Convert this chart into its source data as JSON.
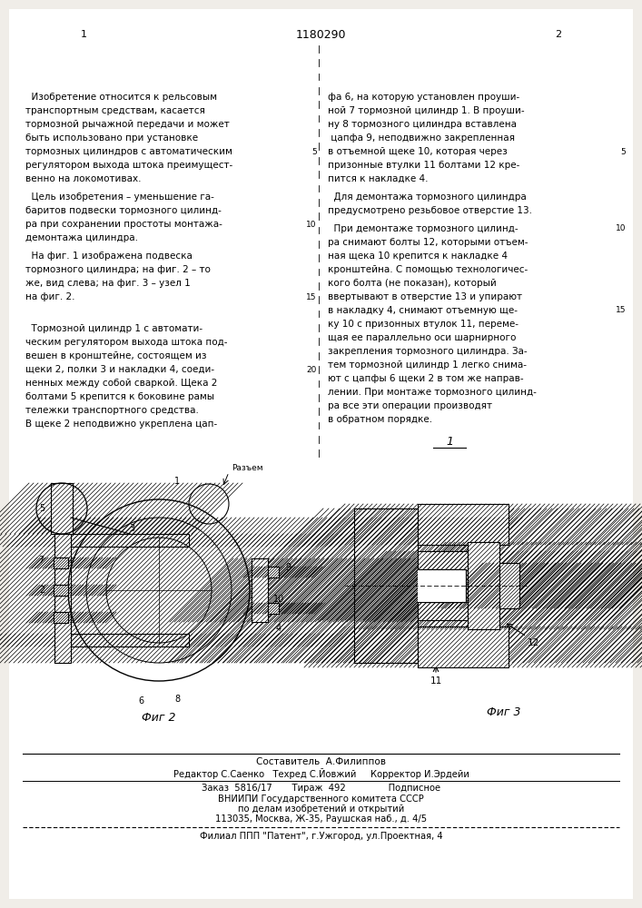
{
  "background_color": "#f0ede8",
  "page_color": "#f7f4ef",
  "header_number": "1180290",
  "col1_number": "1",
  "col2_number": "2",
  "col1_text": [
    [
      "  Изобретение относится к рельсовым",
      0.893
    ],
    [
      "транспортным средствам, касается",
      0.878
    ],
    [
      "тормозной рычажной передачи и может",
      0.863
    ],
    [
      "быть использовано при установке",
      0.848
    ],
    [
      "тормозных цилиндров с автоматическим",
      0.833
    ],
    [
      "регулятором выхода штока преимущест-",
      0.818
    ],
    [
      "венно на локомотивах.",
      0.803
    ],
    [
      "  Цель изобретения – уменьшение га-",
      0.783
    ],
    [
      "баритов подвески тормозного цилинд-",
      0.768
    ],
    [
      "ра при сохранении простоты монтажа-",
      0.753
    ],
    [
      "демонтажа цилиндра.",
      0.738
    ],
    [
      "  На фиг. 1 изображена подвеска",
      0.718
    ],
    [
      "тормозного цилиндра; на фиг. 2 – то",
      0.703
    ],
    [
      "же, вид слева; на фиг. 3 – узел 1",
      0.688
    ],
    [
      "на фиг. 2.",
      0.673
    ],
    [
      "",
      0.658
    ],
    [
      "  Тормозной цилиндр 1 с автомати-",
      0.638
    ],
    [
      "ческим регулятором выхода штока под-",
      0.623
    ],
    [
      "вешен в кронштейне, состоящем из",
      0.608
    ],
    [
      "щеки 2, полки 3 и накладки 4, соеди-",
      0.593
    ],
    [
      "ненных между собой сваркой. Щека 2",
      0.578
    ],
    [
      "болтами 5 крепится к боковине рамы",
      0.563
    ],
    [
      "тележки транспортного средства.",
      0.548
    ],
    [
      "В щеке 2 неподвижно укреплена цап-",
      0.533
    ]
  ],
  "col2_text": [
    [
      "фа 6, на которую установлен проуши-",
      0.893
    ],
    [
      "ной 7 тормозной цилиндр 1. В проуши-",
      0.878
    ],
    [
      "ну 8 тормозного цилиндра вставлена",
      0.863
    ],
    [
      " цапфа 9, неподвижно закрепленная",
      0.848
    ],
    [
      "в отъемной щеке 10, которая через",
      0.833
    ],
    [
      "призонные втулки 11 болтами 12 кре-",
      0.818
    ],
    [
      "пится к накладке 4.",
      0.803
    ],
    [
      "  Для демонтажа тормозного цилиндра",
      0.783
    ],
    [
      "предусмотрено резьбовое отверстие 13.",
      0.768
    ],
    [
      "  При демонтаже тормозного цилинд-",
      0.748
    ],
    [
      "ра снимают болты 12, которыми отъем-",
      0.733
    ],
    [
      "ная щека 10 крепится к накладке 4",
      0.718
    ],
    [
      "кронштейна. С помощью технологичес-",
      0.703
    ],
    [
      "кого болта (не показан), который",
      0.688
    ],
    [
      "ввертывают в отверстие 13 и упирают",
      0.673
    ],
    [
      "в накладку 4, снимают отъемную ще-",
      0.658
    ],
    [
      "ку 10 с призонных втулок 11, переме-",
      0.643
    ],
    [
      "щая ее параллельно оси шарнирного",
      0.628
    ],
    [
      "закрепления тормозного цилиндра. За-",
      0.613
    ],
    [
      "тем тормозной цилиндр 1 легко снима-",
      0.598
    ],
    [
      "ют с цапфы 6 щеки 2 в том же направ-",
      0.583
    ],
    [
      "лении. При монтаже тормозного цилинд-",
      0.568
    ],
    [
      "ра все эти операции производят",
      0.553
    ],
    [
      "в обратном порядке.",
      0.538
    ]
  ],
  "line_nums_left": [
    [
      "5",
      0.833
    ],
    [
      "10",
      0.753
    ],
    [
      "15",
      0.673
    ],
    [
      "20",
      0.593
    ]
  ],
  "line_nums_right": [
    [
      "5",
      0.833
    ],
    [
      "10",
      0.748
    ],
    [
      "15",
      0.658
    ]
  ],
  "fig2_label": "Фиг 2",
  "fig3_label": "Фиг 3",
  "footer_composer": "Составитель  А.Филиппов",
  "footer_editor": "Редактор С.Саенко   Техред С.Йовжий     Корректор И.Эрдейи",
  "footer_order": "Заказ  5816/17       Тираж  492               Подписное",
  "footer_org": "ВНИИПИ Государственного комитета СССР",
  "footer_org2": "по делам изобретений и открытий",
  "footer_addr": "113035, Москва, Ж-35, Раушская наб., д. 4/5",
  "footer_branch": "Филиал ППП \"Патент\", г.Ужгород, ул.Проектная, 4"
}
